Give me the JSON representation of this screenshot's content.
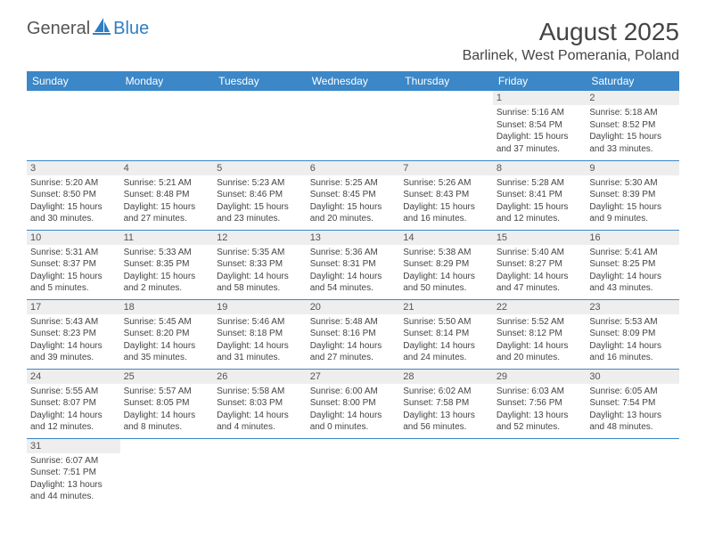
{
  "logo": {
    "general": "General",
    "blue": "Blue"
  },
  "title": "August 2025",
  "location": "Barlinek, West Pomerania, Poland",
  "colors": {
    "header_bg": "#3b87c8",
    "header_text": "#ffffff",
    "daynum_bg": "#eeeeee",
    "border": "#3b87c8",
    "logo_blue": "#2f7ec2",
    "logo_gray": "#555555"
  },
  "weekdays": [
    "Sunday",
    "Monday",
    "Tuesday",
    "Wednesday",
    "Thursday",
    "Friday",
    "Saturday"
  ],
  "weeks": [
    [
      null,
      null,
      null,
      null,
      null,
      {
        "n": "1",
        "sunrise": "5:16 AM",
        "sunset": "8:54 PM",
        "daylight": "15 hours and 37 minutes."
      },
      {
        "n": "2",
        "sunrise": "5:18 AM",
        "sunset": "8:52 PM",
        "daylight": "15 hours and 33 minutes."
      }
    ],
    [
      {
        "n": "3",
        "sunrise": "5:20 AM",
        "sunset": "8:50 PM",
        "daylight": "15 hours and 30 minutes."
      },
      {
        "n": "4",
        "sunrise": "5:21 AM",
        "sunset": "8:48 PM",
        "daylight": "15 hours and 27 minutes."
      },
      {
        "n": "5",
        "sunrise": "5:23 AM",
        "sunset": "8:46 PM",
        "daylight": "15 hours and 23 minutes."
      },
      {
        "n": "6",
        "sunrise": "5:25 AM",
        "sunset": "8:45 PM",
        "daylight": "15 hours and 20 minutes."
      },
      {
        "n": "7",
        "sunrise": "5:26 AM",
        "sunset": "8:43 PM",
        "daylight": "15 hours and 16 minutes."
      },
      {
        "n": "8",
        "sunrise": "5:28 AM",
        "sunset": "8:41 PM",
        "daylight": "15 hours and 12 minutes."
      },
      {
        "n": "9",
        "sunrise": "5:30 AM",
        "sunset": "8:39 PM",
        "daylight": "15 hours and 9 minutes."
      }
    ],
    [
      {
        "n": "10",
        "sunrise": "5:31 AM",
        "sunset": "8:37 PM",
        "daylight": "15 hours and 5 minutes."
      },
      {
        "n": "11",
        "sunrise": "5:33 AM",
        "sunset": "8:35 PM",
        "daylight": "15 hours and 2 minutes."
      },
      {
        "n": "12",
        "sunrise": "5:35 AM",
        "sunset": "8:33 PM",
        "daylight": "14 hours and 58 minutes."
      },
      {
        "n": "13",
        "sunrise": "5:36 AM",
        "sunset": "8:31 PM",
        "daylight": "14 hours and 54 minutes."
      },
      {
        "n": "14",
        "sunrise": "5:38 AM",
        "sunset": "8:29 PM",
        "daylight": "14 hours and 50 minutes."
      },
      {
        "n": "15",
        "sunrise": "5:40 AM",
        "sunset": "8:27 PM",
        "daylight": "14 hours and 47 minutes."
      },
      {
        "n": "16",
        "sunrise": "5:41 AM",
        "sunset": "8:25 PM",
        "daylight": "14 hours and 43 minutes."
      }
    ],
    [
      {
        "n": "17",
        "sunrise": "5:43 AM",
        "sunset": "8:23 PM",
        "daylight": "14 hours and 39 minutes."
      },
      {
        "n": "18",
        "sunrise": "5:45 AM",
        "sunset": "8:20 PM",
        "daylight": "14 hours and 35 minutes."
      },
      {
        "n": "19",
        "sunrise": "5:46 AM",
        "sunset": "8:18 PM",
        "daylight": "14 hours and 31 minutes."
      },
      {
        "n": "20",
        "sunrise": "5:48 AM",
        "sunset": "8:16 PM",
        "daylight": "14 hours and 27 minutes."
      },
      {
        "n": "21",
        "sunrise": "5:50 AM",
        "sunset": "8:14 PM",
        "daylight": "14 hours and 24 minutes."
      },
      {
        "n": "22",
        "sunrise": "5:52 AM",
        "sunset": "8:12 PM",
        "daylight": "14 hours and 20 minutes."
      },
      {
        "n": "23",
        "sunrise": "5:53 AM",
        "sunset": "8:09 PM",
        "daylight": "14 hours and 16 minutes."
      }
    ],
    [
      {
        "n": "24",
        "sunrise": "5:55 AM",
        "sunset": "8:07 PM",
        "daylight": "14 hours and 12 minutes."
      },
      {
        "n": "25",
        "sunrise": "5:57 AM",
        "sunset": "8:05 PM",
        "daylight": "14 hours and 8 minutes."
      },
      {
        "n": "26",
        "sunrise": "5:58 AM",
        "sunset": "8:03 PM",
        "daylight": "14 hours and 4 minutes."
      },
      {
        "n": "27",
        "sunrise": "6:00 AM",
        "sunset": "8:00 PM",
        "daylight": "14 hours and 0 minutes."
      },
      {
        "n": "28",
        "sunrise": "6:02 AM",
        "sunset": "7:58 PM",
        "daylight": "13 hours and 56 minutes."
      },
      {
        "n": "29",
        "sunrise": "6:03 AM",
        "sunset": "7:56 PM",
        "daylight": "13 hours and 52 minutes."
      },
      {
        "n": "30",
        "sunrise": "6:05 AM",
        "sunset": "7:54 PM",
        "daylight": "13 hours and 48 minutes."
      }
    ],
    [
      {
        "n": "31",
        "sunrise": "6:07 AM",
        "sunset": "7:51 PM",
        "daylight": "13 hours and 44 minutes."
      },
      null,
      null,
      null,
      null,
      null,
      null
    ]
  ],
  "labels": {
    "sunrise": "Sunrise:",
    "sunset": "Sunset:",
    "daylight": "Daylight:"
  }
}
